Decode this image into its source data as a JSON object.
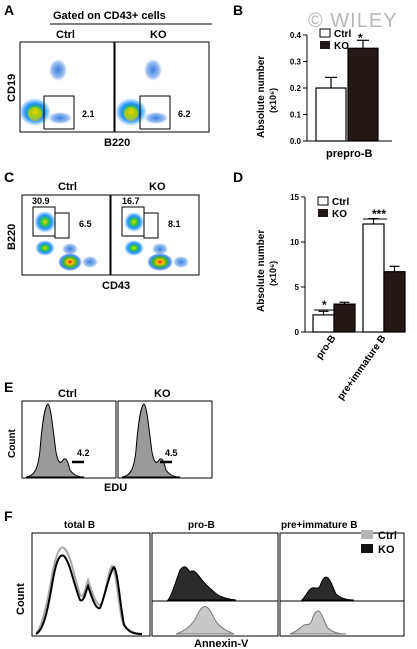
{
  "watermark": "© WILEY",
  "panels": {
    "A": {
      "letter": "A",
      "header": "Gated on CD43+ cells",
      "plot_titles": [
        "Ctrl",
        "KO"
      ],
      "y_label": "CD19",
      "x_label": "B220",
      "gate_values": [
        "2.1",
        "6.2"
      ]
    },
    "B": {
      "letter": "B",
      "y_label": "Absolute number",
      "y_unit": "(x10⁶)",
      "x_label": "prepro-B",
      "legend": [
        "Ctrl",
        "KO"
      ],
      "significance": "*",
      "y_ticks": [
        "0.0",
        "0.1",
        "0.2",
        "0.3",
        "0.4"
      ]
    },
    "C": {
      "letter": "C",
      "plot_titles": [
        "Ctrl",
        "KO"
      ],
      "y_label": "B220",
      "x_label": "CD43",
      "gate_values_left": [
        "30.9",
        "16.7"
      ],
      "gate_values_right": [
        "6.5",
        "8.1"
      ]
    },
    "D": {
      "letter": "D",
      "y_label": "Absolute number",
      "y_unit": "(x10⁶)",
      "legend": [
        "Ctrl",
        "KO"
      ],
      "significance": [
        "*",
        "***"
      ],
      "y_ticks": [
        "0",
        "5",
        "10",
        "15"
      ]
    },
    "E": {
      "letter": "E",
      "plot_titles": [
        "Ctrl",
        "KO"
      ],
      "y_label": "Count",
      "x_label": "EDU",
      "gate_values": [
        "4.2",
        "4.5"
      ]
    },
    "F": {
      "letter": "F",
      "column_titles": [
        "total B",
        "pro-B",
        "pre+immature B"
      ],
      "y_label": "Count",
      "x_label": "Annexin-V",
      "legend": [
        "Ctrl",
        "KO"
      ]
    }
  },
  "colors": {
    "ctrl": "#ffffff",
    "ko": "#231815",
    "ctrl_hist": "#c8c8c8",
    "ko_hist": "#2b2b2b",
    "edu_hist": "#9a9a9a"
  },
  "chart_data": [
    {
      "type": "bar",
      "panel": "B",
      "categories": [
        "prepro-B"
      ],
      "series": [
        {
          "name": "Ctrl",
          "values": [
            0.2
          ],
          "errors": [
            0.04
          ]
        },
        {
          "name": "KO",
          "values": [
            0.35
          ],
          "errors": [
            0.03
          ]
        }
      ],
      "xlabel": "prepro-B",
      "ylabel": "Absolute number (x10⁶)",
      "ylim": [
        0,
        0.4
      ],
      "yticks": [
        0,
        0.1,
        0.2,
        0.3,
        0.4
      ],
      "legend": "top-left"
    },
    {
      "type": "bar",
      "panel": "D",
      "categories": [
        "pro-B",
        "pre+immature B"
      ],
      "series": [
        {
          "name": "Ctrl",
          "values": [
            1.9,
            12.0
          ],
          "errors": [
            0.4,
            0.6
          ]
        },
        {
          "name": "KO",
          "values": [
            3.1,
            6.7
          ],
          "errors": [
            0.2,
            0.6
          ]
        }
      ],
      "ylabel": "Absolute number (x10⁶)",
      "ylim": [
        0,
        15
      ],
      "yticks": [
        0,
        5,
        10,
        15
      ],
      "legend": "top-left"
    }
  ]
}
